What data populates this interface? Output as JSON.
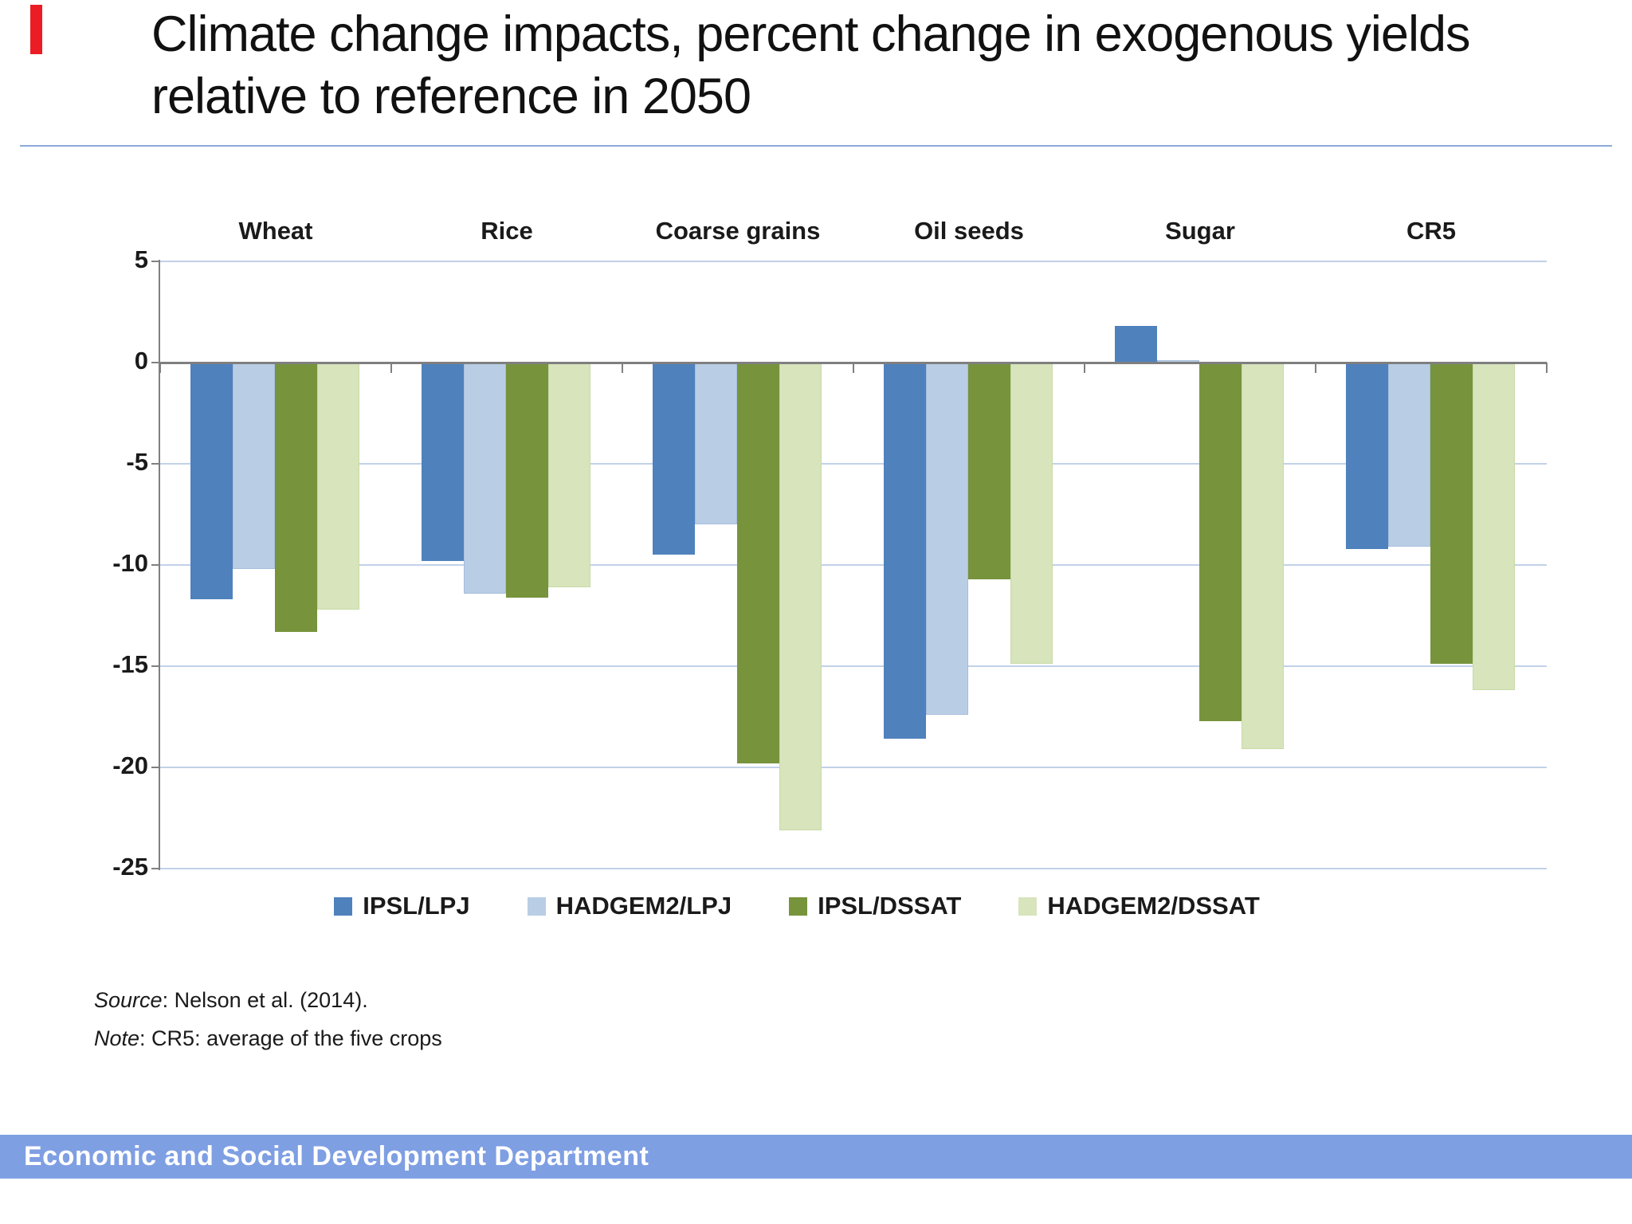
{
  "slide": {
    "title": "Climate change impacts, percent change in exogenous yields relative to reference in 2050",
    "source_label": "Source",
    "source_rest": ": Nelson et al. (2014).",
    "note_label": "Note",
    "note_rest": ": CR5: average of the five crops",
    "footer": "Economic and Social Development Department"
  },
  "chart_data": {
    "type": "bar",
    "title": "",
    "xlabel": "",
    "ylabel": "",
    "categories": [
      "Wheat",
      "Rice",
      "Coarse grains",
      "Oil seeds",
      "Sugar",
      "CR5"
    ],
    "series": [
      {
        "name": "IPSL/LPJ",
        "color": "#4f81bd",
        "border": "#4f81bd",
        "values": [
          -11.7,
          -9.8,
          -9.5,
          -18.6,
          1.8,
          -9.2
        ]
      },
      {
        "name": "HADGEM2/LPJ",
        "color": "#b9cde5",
        "border": "#a6bedd",
        "values": [
          -10.2,
          -11.4,
          -8.0,
          -17.4,
          0.1,
          -9.1
        ]
      },
      {
        "name": "IPSL/DSSAT",
        "color": "#77933c",
        "border": "#77933c",
        "values": [
          -13.3,
          -11.6,
          -19.8,
          -10.7,
          -17.7,
          -14.9
        ]
      },
      {
        "name": "HADGEM2/DSSAT",
        "color": "#d7e4bc",
        "border": "#c8dba6",
        "values": [
          -12.2,
          -11.1,
          -23.1,
          -14.9,
          -19.1,
          -16.2
        ]
      }
    ],
    "ylim": [
      -25,
      5
    ],
    "ytick_step": 5,
    "grid": true,
    "legend_position": "bottom",
    "axis_color": "#7f7f7f",
    "gridline_color": "#c2d1e8"
  }
}
